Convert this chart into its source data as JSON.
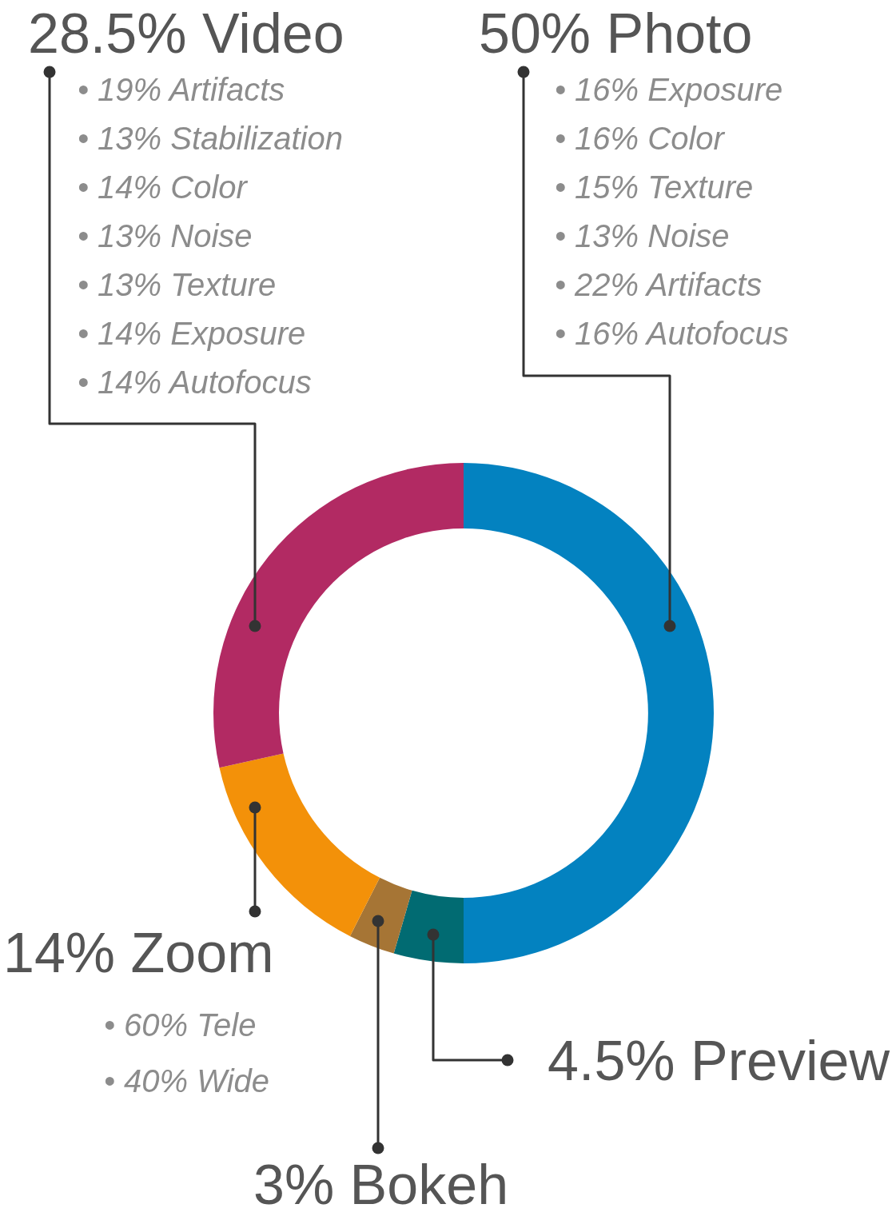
{
  "chart_data": {
    "type": "donut",
    "categories": [
      "Photo",
      "Preview",
      "Bokeh",
      "Zoom",
      "Video"
    ],
    "values": [
      50,
      4.5,
      3,
      14,
      28.5
    ],
    "colors": [
      "#0382c0",
      "#016b72",
      "#a67535",
      "#f39109",
      "#b22a63"
    ],
    "value_labels": [
      "50%",
      "4.5%",
      "3%",
      "14%",
      "28.5%"
    ],
    "annotations": [
      "• 19% Artifacts",
      "• 13% Stabilization",
      "• 14% Color",
      "• 13% Noise",
      "• 13% Texture",
      "• 14% Exposure",
      "• 14% Autofocus",
      "• 16% Exposure",
      "• 16% Color",
      "• 15% Texture",
      "• 13% Noise",
      "• 22% Artifacts",
      "• 16% Autofocus",
      "• 60% Tele",
      "• 40% Wide"
    ]
  }
}
